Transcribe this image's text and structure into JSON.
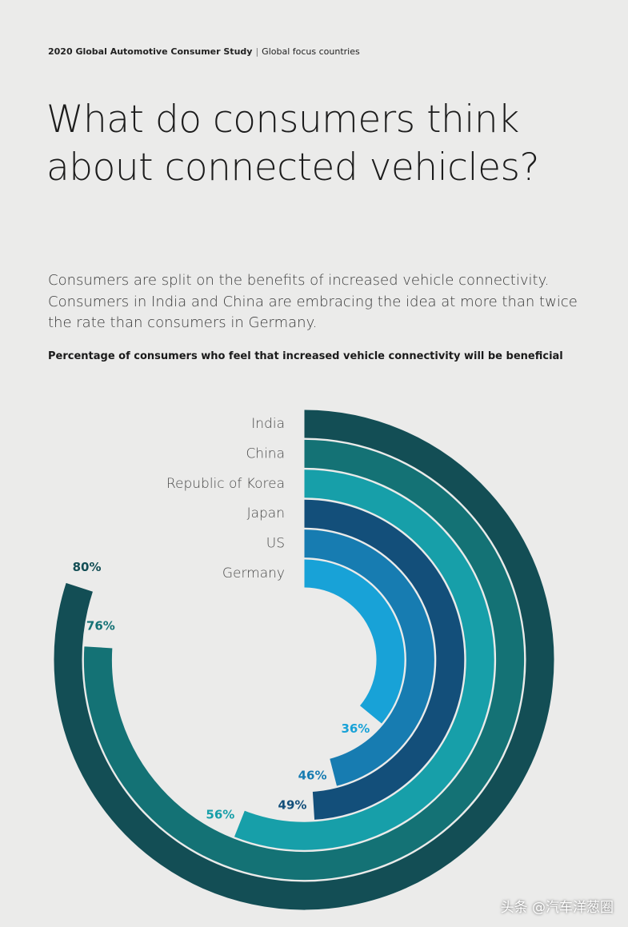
{
  "header": {
    "study": "2020 Global Automotive Consumer Study",
    "separator": "|",
    "scope": "Global focus countries"
  },
  "title_lines": [
    "What do consumers think",
    "about connected vehicles?"
  ],
  "intro_lines": [
    "Consumers are split on the benefits of increased vehicle connectivity.",
    "Consumers in India and China are embracing the idea at more than twice",
    "the rate than consumers in Germany."
  ],
  "chart_data": {
    "type": "radial_bar",
    "title": "Percentage of consumers who feel that increased vehicle connectivity will be beneficial",
    "categories": [
      "India",
      "China",
      "Republic of Korea",
      "Japan",
      "US",
      "Germany"
    ],
    "values": [
      80,
      76,
      56,
      49,
      46,
      36
    ],
    "value_labels": [
      "80%",
      "76%",
      "56%",
      "49%",
      "46%",
      "36%"
    ],
    "colors": [
      "#134e55",
      "#147275",
      "#179fa9",
      "#134f7a",
      "#177cb1",
      "#18a2d7"
    ],
    "ylim": [
      0,
      100
    ]
  },
  "watermark": "头条 @汽车洋葱圈"
}
